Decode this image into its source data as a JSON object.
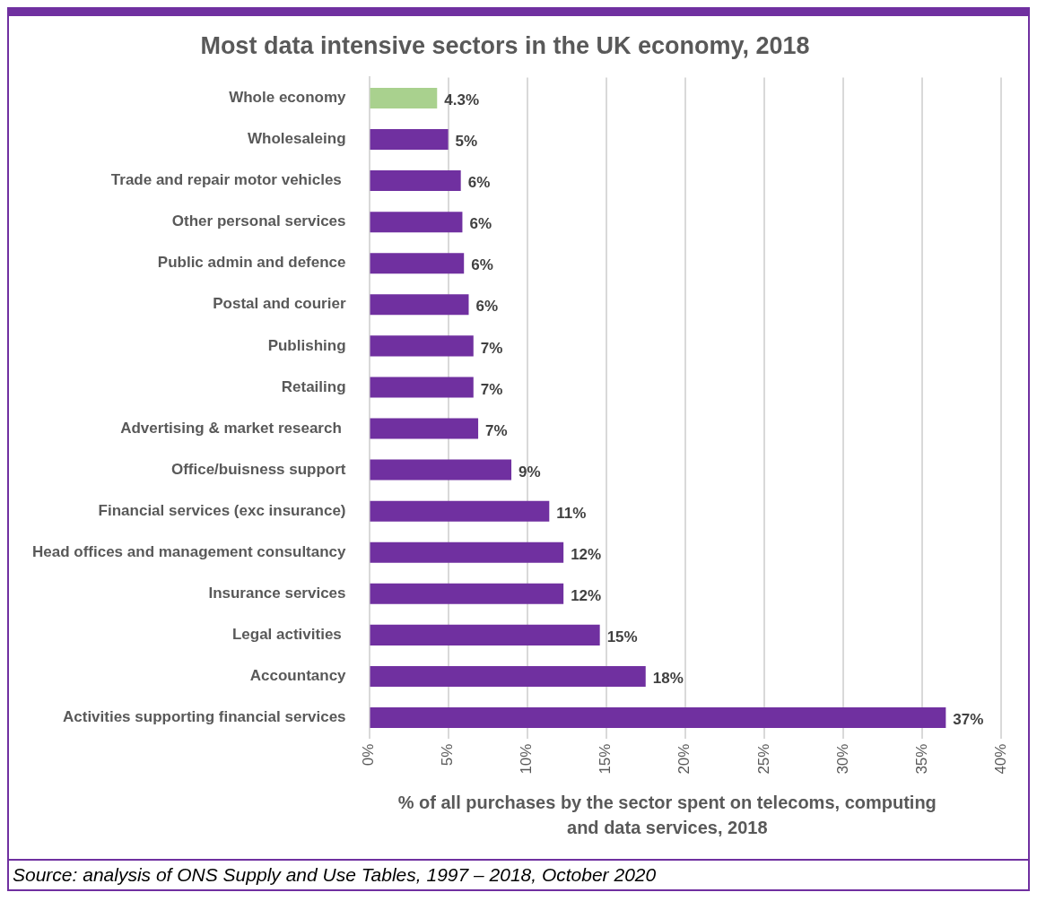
{
  "chart_data": {
    "type": "bar",
    "orientation": "horizontal",
    "title": "Most data intensive sectors in the UK economy, 2018",
    "xlabel": "% of all purchases by the sector spent on telecoms, computing and data services, 2018",
    "categories": [
      "Whole economy",
      "Wholesaleing",
      "Trade and repair motor vehicles ",
      "Other personal services",
      "Public admin and defence",
      "Postal and courier",
      "Publishing",
      "Retailing",
      "Advertising & market research ",
      "Office/buisness support",
      "Financial services (exc insurance)",
      "Head offices and management consultancy",
      "Insurance services",
      "Legal activities ",
      "Accountancy",
      "Activities supporting financial services"
    ],
    "values": [
      4.3,
      5.0,
      5.8,
      5.9,
      6.0,
      6.3,
      6.6,
      6.6,
      6.9,
      9.0,
      11.4,
      12.3,
      12.3,
      14.6,
      17.5,
      36.5
    ],
    "value_labels": [
      "4.3%",
      "5%",
      "6%",
      "6%",
      "6%",
      "6%",
      "7%",
      "7%",
      "7%",
      "9%",
      "11%",
      "12%",
      "12%",
      "15%",
      "18%",
      "37%"
    ],
    "colors": [
      "#a9d18e",
      "#7030a0",
      "#7030a0",
      "#7030a0",
      "#7030a0",
      "#7030a0",
      "#7030a0",
      "#7030a0",
      "#7030a0",
      "#7030a0",
      "#7030a0",
      "#7030a0",
      "#7030a0",
      "#7030a0",
      "#7030a0",
      "#7030a0"
    ],
    "xlim": [
      0,
      40
    ],
    "xticks": [
      {
        "value": 0,
        "label": "0%"
      },
      {
        "value": 5,
        "label": "5%"
      },
      {
        "value": 10,
        "label": "10%"
      },
      {
        "value": 15,
        "label": "15%"
      },
      {
        "value": 20,
        "label": "20%"
      },
      {
        "value": 25,
        "label": "25%"
      },
      {
        "value": 30,
        "label": "30%"
      },
      {
        "value": 35,
        "label": "35%"
      },
      {
        "value": 40,
        "label": "40%"
      }
    ],
    "grid": "x",
    "legend": false,
    "annotations": [
      "Source: analysis of ONS Supply and Use Tables, 1997 – 2018, October 2020"
    ]
  }
}
